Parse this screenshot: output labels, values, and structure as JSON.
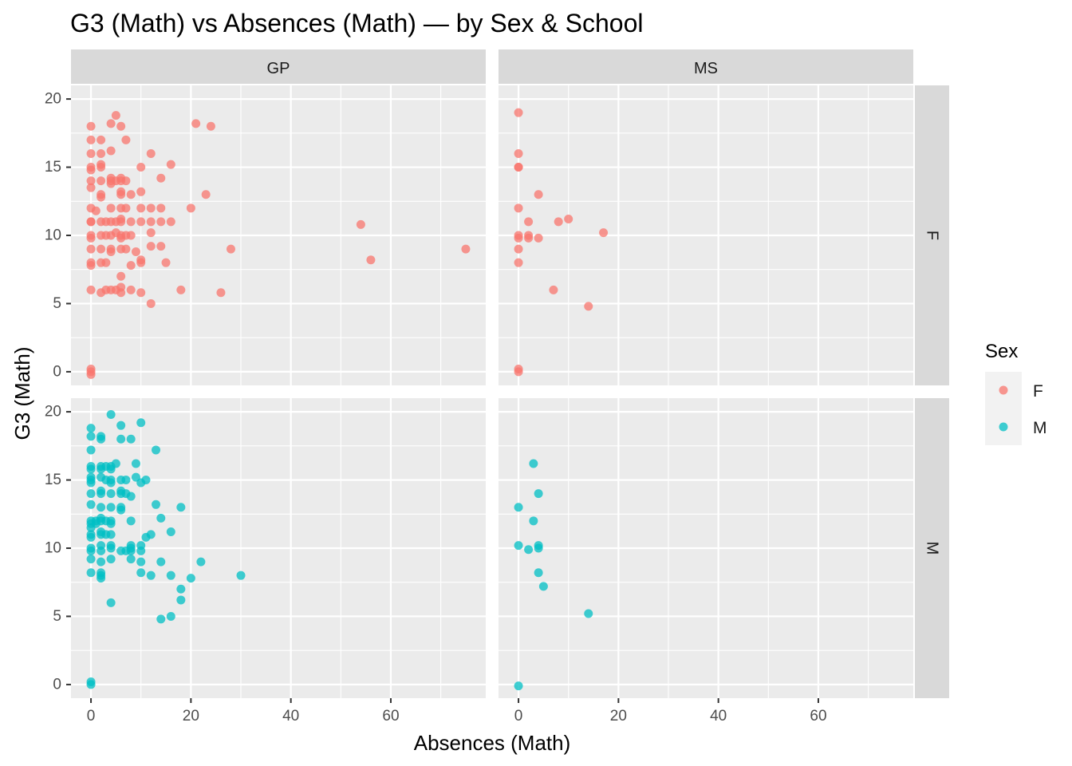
{
  "chart_data": {
    "type": "scatter",
    "title": "G3 (Math) vs Absences (Math) — by Sex & School",
    "xlabel": "Absences (Math)",
    "ylabel": "G3 (Math)",
    "xlim": [
      -4,
      79
    ],
    "ylim": [
      -1,
      21
    ],
    "x_ticks": [
      0,
      20,
      40,
      60
    ],
    "x_tick_labels": [
      "0",
      "20",
      "40",
      "60"
    ],
    "y_ticks": [
      0,
      5,
      10,
      15,
      20
    ],
    "y_tick_labels": [
      "0",
      "5",
      "10",
      "15",
      "20"
    ],
    "grid": true,
    "facet_cols": [
      "GP",
      "MS"
    ],
    "facet_rows": [
      "F",
      "M"
    ],
    "legend": {
      "title": "Sex",
      "position": "right",
      "entries": [
        "F",
        "M"
      ]
    },
    "colors": {
      "F": "#F8766D",
      "M": "#00BFC4",
      "panel_bg": "#EBEBEB",
      "strip_bg": "#D9D9D9"
    },
    "series": [
      {
        "school": "GP",
        "sex": "F",
        "color": "#F8766D",
        "points": [
          [
            0,
            18
          ],
          [
            0,
            17
          ],
          [
            0,
            16
          ],
          [
            0,
            15
          ],
          [
            0,
            14.8
          ],
          [
            0,
            14
          ],
          [
            0,
            13.5
          ],
          [
            0,
            12
          ],
          [
            0,
            11
          ],
          [
            0,
            11
          ],
          [
            0,
            10
          ],
          [
            0,
            9.8
          ],
          [
            0,
            9
          ],
          [
            0,
            8
          ],
          [
            0,
            7.8
          ],
          [
            0,
            6
          ],
          [
            0,
            0.2
          ],
          [
            0,
            0
          ],
          [
            0,
            -0.2
          ],
          [
            1,
            11.8
          ],
          [
            2,
            17
          ],
          [
            2,
            16
          ],
          [
            2,
            15.2
          ],
          [
            2,
            15
          ],
          [
            2,
            14
          ],
          [
            2,
            13
          ],
          [
            2,
            12.8
          ],
          [
            2,
            11
          ],
          [
            2,
            10
          ],
          [
            2,
            9
          ],
          [
            2,
            8
          ],
          [
            2,
            5.8
          ],
          [
            3,
            11
          ],
          [
            3,
            10
          ],
          [
            3,
            8
          ],
          [
            3,
            6
          ],
          [
            4,
            18.2
          ],
          [
            4,
            16.2
          ],
          [
            4,
            14.2
          ],
          [
            4,
            14
          ],
          [
            4,
            13.8
          ],
          [
            4,
            12
          ],
          [
            4,
            11
          ],
          [
            4,
            10
          ],
          [
            4,
            9
          ],
          [
            4,
            8.8
          ],
          [
            4,
            6
          ],
          [
            5,
            18.8
          ],
          [
            5,
            14
          ],
          [
            5,
            11
          ],
          [
            5,
            10.2
          ],
          [
            5,
            6
          ],
          [
            6,
            18
          ],
          [
            6,
            14.2
          ],
          [
            6,
            14
          ],
          [
            6,
            13.2
          ],
          [
            6,
            13
          ],
          [
            6,
            12
          ],
          [
            6,
            11.2
          ],
          [
            6,
            11
          ],
          [
            6,
            10
          ],
          [
            6,
            9.8
          ],
          [
            6,
            9
          ],
          [
            6,
            7
          ],
          [
            6,
            6.2
          ],
          [
            6,
            5.8
          ],
          [
            7,
            17
          ],
          [
            7,
            14
          ],
          [
            7,
            12
          ],
          [
            7,
            10
          ],
          [
            7,
            9
          ],
          [
            8,
            13
          ],
          [
            8,
            11
          ],
          [
            8,
            10
          ],
          [
            8,
            7.8
          ],
          [
            8,
            6
          ],
          [
            9,
            8.8
          ],
          [
            10,
            15
          ],
          [
            10,
            13.2
          ],
          [
            10,
            12
          ],
          [
            10,
            11
          ],
          [
            10,
            8.2
          ],
          [
            10,
            8
          ],
          [
            10,
            5.8
          ],
          [
            12,
            16
          ],
          [
            12,
            12
          ],
          [
            12,
            11
          ],
          [
            12,
            10.2
          ],
          [
            12,
            9.2
          ],
          [
            12,
            5
          ],
          [
            14,
            14.2
          ],
          [
            14,
            12
          ],
          [
            14,
            11
          ],
          [
            14,
            9.2
          ],
          [
            15,
            8
          ],
          [
            16,
            15.2
          ],
          [
            16,
            11
          ],
          [
            18,
            6
          ],
          [
            20,
            12
          ],
          [
            21,
            18.2
          ],
          [
            23,
            13
          ],
          [
            24,
            18
          ],
          [
            26,
            5.8
          ],
          [
            28,
            9
          ],
          [
            54,
            10.8
          ],
          [
            56,
            8.2
          ],
          [
            75,
            9
          ]
        ]
      },
      {
        "school": "MS",
        "sex": "F",
        "color": "#F8766D",
        "points": [
          [
            0,
            19
          ],
          [
            0,
            16
          ],
          [
            0,
            15
          ],
          [
            0,
            15
          ],
          [
            0,
            12
          ],
          [
            0,
            10
          ],
          [
            0,
            9.8
          ],
          [
            0,
            9
          ],
          [
            0,
            8
          ],
          [
            0,
            0.2
          ],
          [
            0,
            0
          ],
          [
            2,
            11
          ],
          [
            2,
            10
          ],
          [
            2,
            9.8
          ],
          [
            4,
            13
          ],
          [
            4,
            9.8
          ],
          [
            7,
            6
          ],
          [
            8,
            11
          ],
          [
            10,
            11.2
          ],
          [
            14,
            4.8
          ],
          [
            17,
            10.2
          ]
        ]
      },
      {
        "school": "GP",
        "sex": "M",
        "color": "#00BFC4",
        "points": [
          [
            0,
            18.8
          ],
          [
            0,
            18.2
          ],
          [
            0,
            17.2
          ],
          [
            0,
            16
          ],
          [
            0,
            15.8
          ],
          [
            0,
            15.2
          ],
          [
            0,
            15
          ],
          [
            0,
            14.8
          ],
          [
            0,
            14
          ],
          [
            0,
            13.2
          ],
          [
            0,
            12
          ],
          [
            0,
            11.8
          ],
          [
            0,
            11.5
          ],
          [
            0,
            11
          ],
          [
            0,
            10.8
          ],
          [
            0,
            10
          ],
          [
            0,
            9.8
          ],
          [
            0,
            9.2
          ],
          [
            0,
            8.2
          ],
          [
            0,
            0.2
          ],
          [
            0,
            0
          ],
          [
            1,
            12
          ],
          [
            1,
            11.8
          ],
          [
            2,
            18.2
          ],
          [
            2,
            18
          ],
          [
            2,
            16
          ],
          [
            2,
            15.8
          ],
          [
            2,
            15.2
          ],
          [
            2,
            14.2
          ],
          [
            2,
            14
          ],
          [
            2,
            13
          ],
          [
            2,
            12.2
          ],
          [
            2,
            12
          ],
          [
            2,
            11.2
          ],
          [
            2,
            11
          ],
          [
            2,
            10.2
          ],
          [
            2,
            9.8
          ],
          [
            2,
            9
          ],
          [
            2,
            8.2
          ],
          [
            2,
            8
          ],
          [
            2,
            7.8
          ],
          [
            3,
            16
          ],
          [
            3,
            15
          ],
          [
            3,
            12
          ],
          [
            3,
            11
          ],
          [
            4,
            19.8
          ],
          [
            4,
            16
          ],
          [
            4,
            15.8
          ],
          [
            4,
            15
          ],
          [
            4,
            14.8
          ],
          [
            4,
            14
          ],
          [
            4,
            13
          ],
          [
            4,
            12
          ],
          [
            4,
            11.8
          ],
          [
            4,
            11
          ],
          [
            4,
            10.2
          ],
          [
            4,
            10
          ],
          [
            4,
            9.2
          ],
          [
            4,
            6
          ],
          [
            5,
            16.2
          ],
          [
            6,
            19
          ],
          [
            6,
            18
          ],
          [
            6,
            15
          ],
          [
            6,
            14.2
          ],
          [
            6,
            14
          ],
          [
            6,
            13
          ],
          [
            6,
            12.8
          ],
          [
            6,
            9.8
          ],
          [
            7,
            15
          ],
          [
            7,
            14
          ],
          [
            7,
            9.8
          ],
          [
            8,
            18
          ],
          [
            8,
            13.8
          ],
          [
            8,
            12
          ],
          [
            8,
            10.2
          ],
          [
            8,
            10
          ],
          [
            8,
            9.8
          ],
          [
            8,
            9.2
          ],
          [
            9,
            16.2
          ],
          [
            9,
            15.2
          ],
          [
            10,
            19.2
          ],
          [
            10,
            14.8
          ],
          [
            10,
            10.2
          ],
          [
            10,
            9.8
          ],
          [
            10,
            9
          ],
          [
            10,
            8.2
          ],
          [
            11,
            15
          ],
          [
            11,
            10.8
          ],
          [
            12,
            11
          ],
          [
            12,
            8
          ],
          [
            13,
            17.2
          ],
          [
            13,
            13.2
          ],
          [
            14,
            12.2
          ],
          [
            14,
            9
          ],
          [
            14,
            4.8
          ],
          [
            16,
            11.2
          ],
          [
            16,
            8
          ],
          [
            16,
            5
          ],
          [
            18,
            13
          ],
          [
            18,
            7
          ],
          [
            18,
            6.2
          ],
          [
            20,
            7.8
          ],
          [
            22,
            9
          ],
          [
            30,
            8
          ]
        ]
      },
      {
        "school": "MS",
        "sex": "M",
        "color": "#00BFC4",
        "points": [
          [
            0,
            13
          ],
          [
            0,
            10.2
          ],
          [
            0,
            -0.1
          ],
          [
            2,
            9.9
          ],
          [
            3,
            16.2
          ],
          [
            3,
            12
          ],
          [
            4,
            14
          ],
          [
            4,
            10.2
          ],
          [
            4,
            10
          ],
          [
            4,
            8.2
          ],
          [
            5,
            7.2
          ],
          [
            14,
            5.2
          ]
        ]
      }
    ]
  }
}
